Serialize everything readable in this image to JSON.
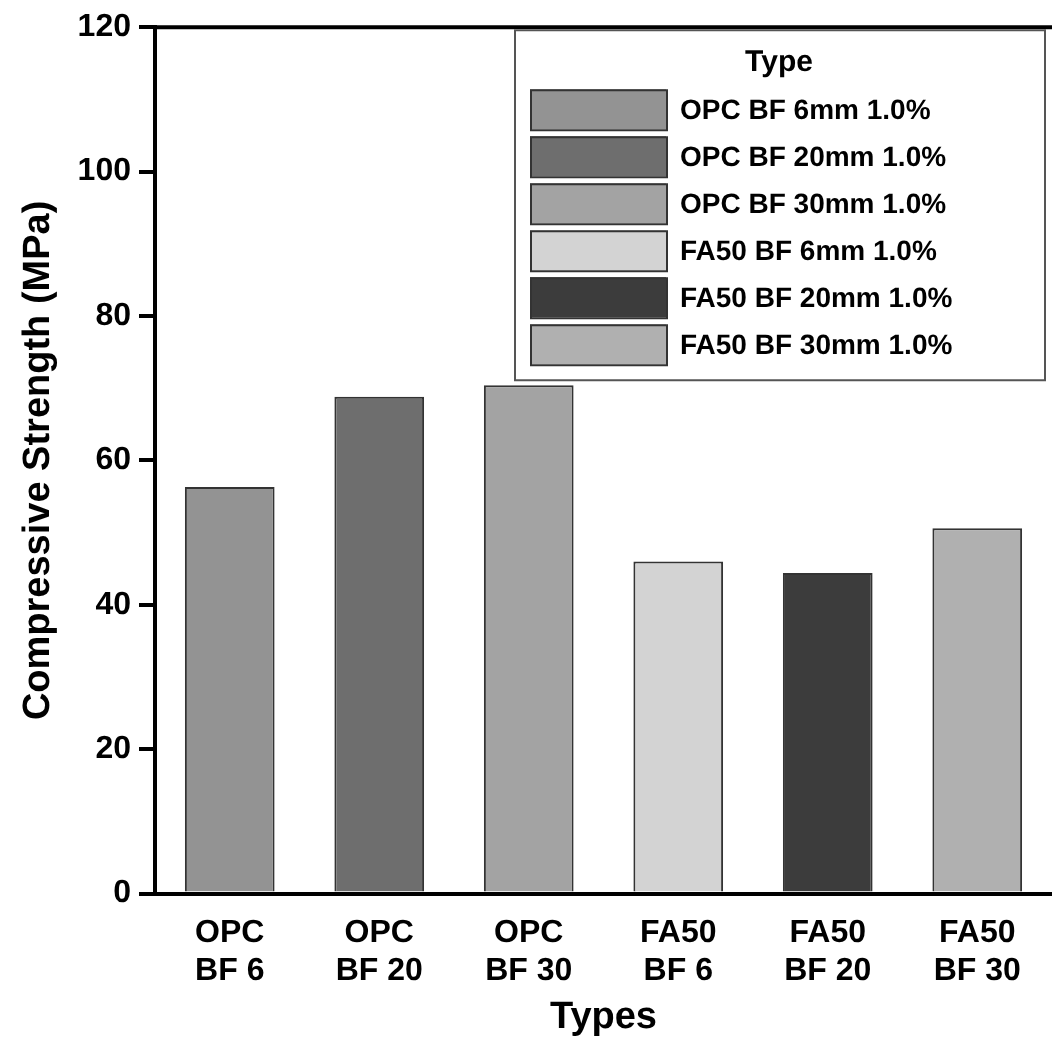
{
  "chart_data": {
    "type": "bar",
    "xlabel": "Types",
    "ylabel": "Compressive Strength (MPa)",
    "legend_title": "Type",
    "legend": "top right",
    "grid": false,
    "categories": [
      "OPC\nBF 6",
      "OPC\nBF 20",
      "OPC\nBF 30",
      "FA50\nBF 6",
      "FA50\nBF 20",
      "FA50\nBF 30"
    ],
    "series": [
      {
        "name": "OPC BF 6mm 1.0%",
        "color": "#939393",
        "values": [
          56.3,
          null,
          null,
          null,
          null,
          null
        ]
      },
      {
        "name": "OPC BF 20mm 1.0%",
        "color": "#6e6e6e",
        "values": [
          null,
          68.8,
          null,
          null,
          null,
          null
        ]
      },
      {
        "name": "OPC BF 30mm 1.0%",
        "color": "#a3a3a3",
        "values": [
          null,
          null,
          70.4,
          null,
          null,
          null
        ]
      },
      {
        "name": "FA50 BF 6mm 1.0%",
        "color": "#d3d3d3",
        "values": [
          null,
          null,
          null,
          46.0,
          null,
          null
        ]
      },
      {
        "name": "FA50 BF 20mm 1.0%",
        "color": "#3c3c3c",
        "values": [
          null,
          null,
          null,
          null,
          44.4,
          null
        ]
      },
      {
        "name": "FA50 BF 30mm 1.0%",
        "color": "#b0b0b0",
        "values": [
          null,
          null,
          null,
          null,
          null,
          50.6
        ]
      }
    ],
    "ylim": [
      0,
      120
    ],
    "yticks": [
      0,
      20,
      40,
      60,
      80,
      100,
      120
    ]
  }
}
